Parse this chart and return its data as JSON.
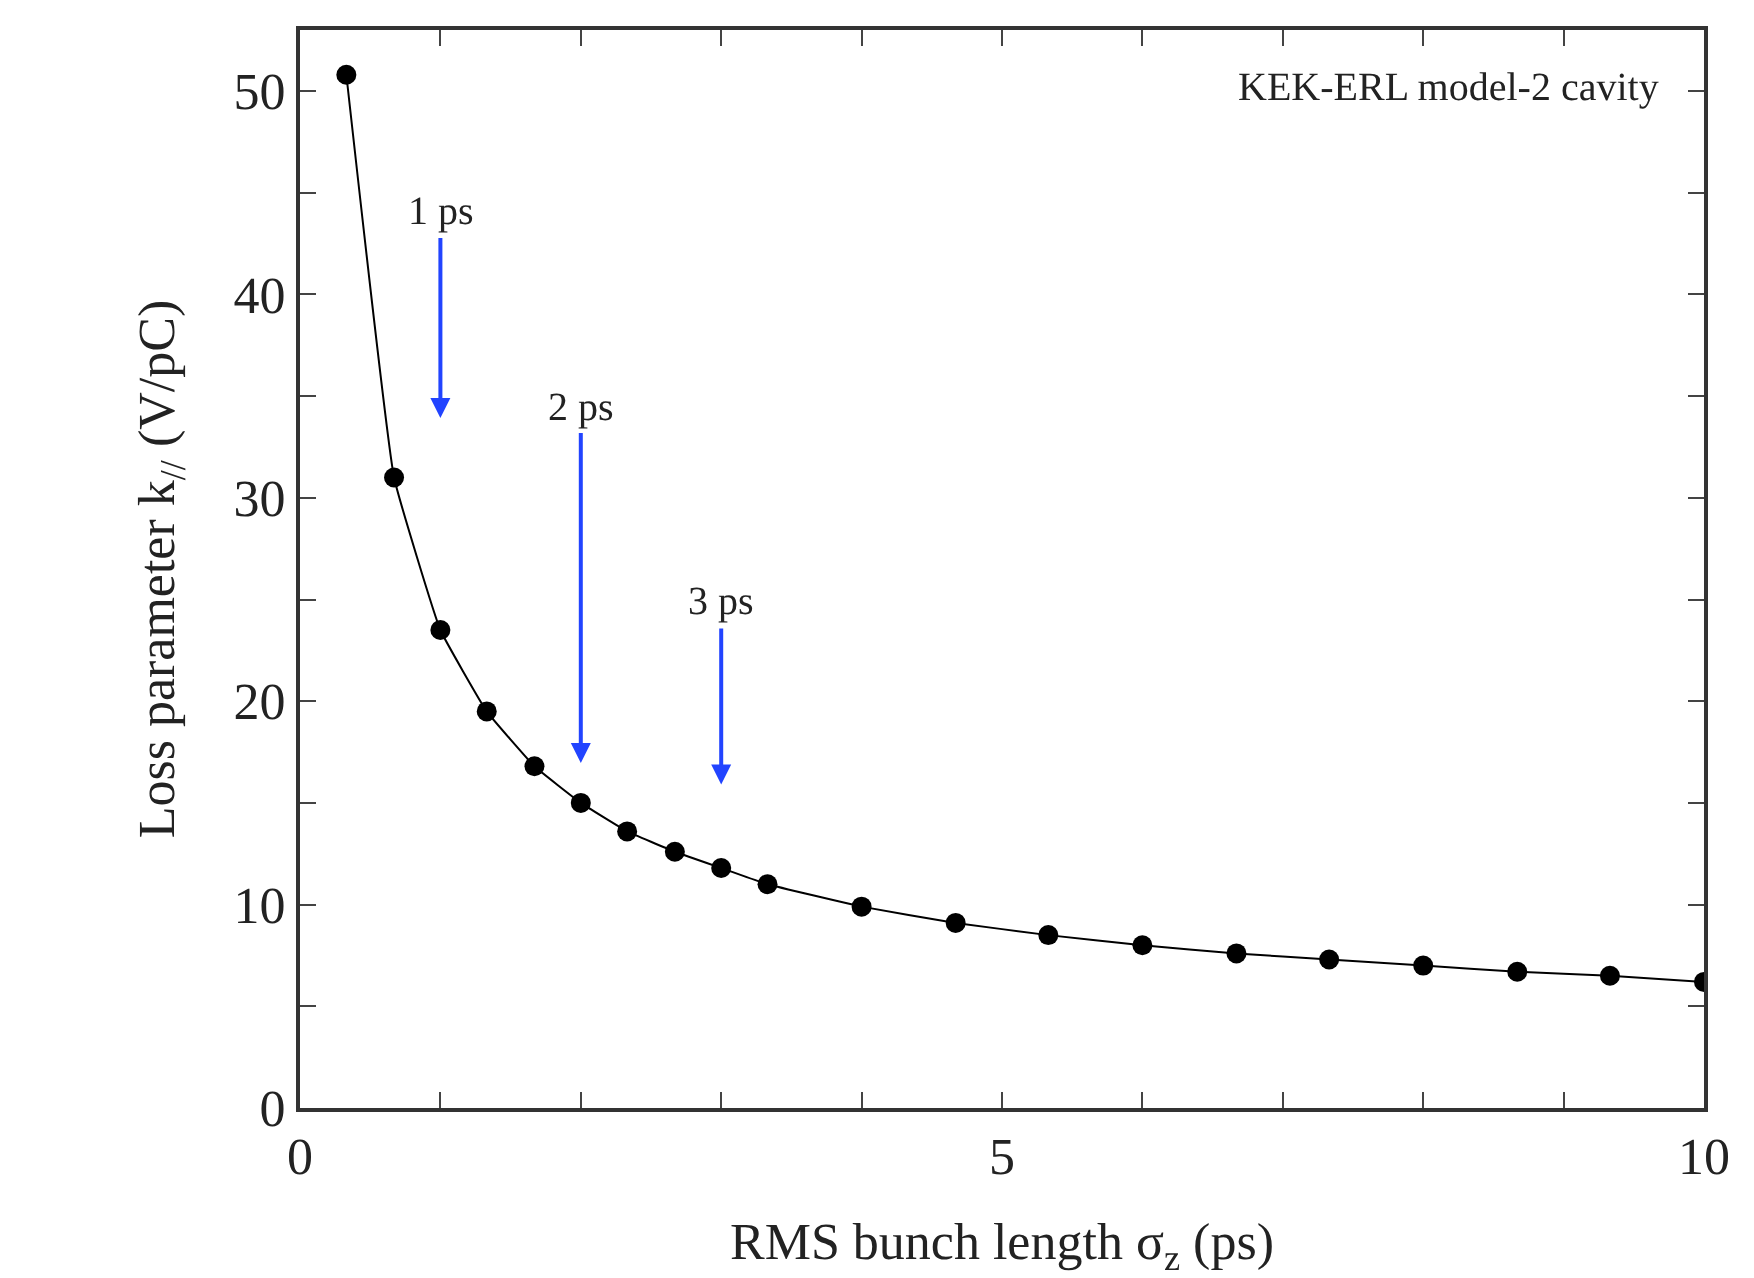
{
  "chart_data": {
    "type": "line",
    "xlabel": "RMS bunch length σ$_{z}$ (ps)",
    "ylabel": "Loss parameter k$_{//}$ (V/pC)",
    "x": [
      0.33,
      0.67,
      1,
      1.33,
      1.67,
      2,
      2.33,
      2.67,
      3,
      3.33,
      4,
      4.67,
      5.33,
      6,
      6.67,
      7.33,
      8,
      8.67,
      9.33,
      10
    ],
    "series": [
      {
        "color": "#000000",
        "values": [
          50.8,
          31,
          23.5,
          19.5,
          16.8,
          15,
          13.6,
          12.6,
          11.8,
          11,
          9.9,
          9.1,
          8.5,
          8,
          7.6,
          7.3,
          7,
          6.7,
          6.5,
          6.2
        ]
      }
    ],
    "xlim": [
      0,
      10
    ],
    "ylim": [
      0,
      53
    ],
    "xticks": [
      0,
      {
        "value": 1,
        "label": null
      },
      {
        "value": 2,
        "label": null
      },
      {
        "value": 3,
        "label": null
      },
      {
        "value": 4,
        "label": null
      },
      5,
      {
        "value": 6,
        "label": null
      },
      {
        "value": 7,
        "label": null
      },
      {
        "value": 8,
        "label": null
      },
      {
        "value": 9,
        "label": null
      },
      10
    ],
    "yticks": [
      0,
      {
        "value": 5,
        "label": null
      },
      10,
      {
        "value": 15,
        "label": null
      },
      20,
      {
        "value": 25,
        "label": null
      },
      30,
      {
        "value": 35,
        "label": null
      },
      40,
      {
        "value": 45,
        "label": null
      },
      50
    ],
    "annotations": [
      "KEK-ERL model-2 cavity",
      "1 ps",
      "2 ps",
      "3 ps"
    ],
    "marker": "circle",
    "line_style": "solid"
  }
}
